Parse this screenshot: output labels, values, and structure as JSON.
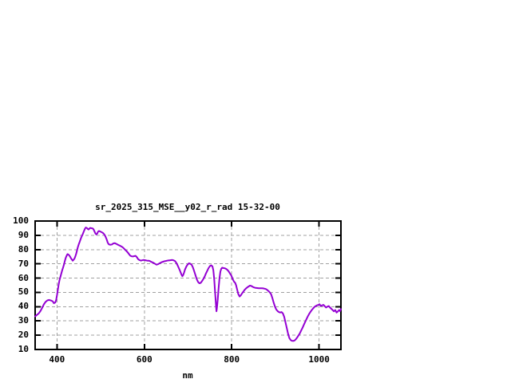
{
  "window": {
    "background": "#ffffff"
  },
  "chart_data": {
    "type": "line",
    "title": "sr_2025_315_MSE__y02_r_rad 15-32-00",
    "xlabel": "nm",
    "ylabel": "",
    "xlim": [
      350,
      1050
    ],
    "ylim": [
      10,
      100
    ],
    "x_ticks": [
      400,
      600,
      800,
      1000
    ],
    "y_ticks": [
      10,
      20,
      30,
      40,
      50,
      60,
      70,
      80,
      90,
      100
    ],
    "grid": true,
    "legend": "none",
    "colors": {
      "line": "#9400d3",
      "grid": "#a0a0a0",
      "border": "#000000",
      "text": "#000000"
    },
    "points": [
      [
        350,
        33.2
      ],
      [
        354,
        34.2
      ],
      [
        358,
        35.2
      ],
      [
        362,
        36.9
      ],
      [
        366,
        39.2
      ],
      [
        370,
        41.6
      ],
      [
        374,
        43.4
      ],
      [
        378,
        44.4
      ],
      [
        382,
        44.7
      ],
      [
        386,
        44.3
      ],
      [
        390,
        43.8
      ],
      [
        393,
        42.4
      ],
      [
        396,
        42.9
      ],
      [
        398,
        44.6
      ],
      [
        400,
        48.0
      ],
      [
        402,
        52.0
      ],
      [
        404,
        55.6
      ],
      [
        406,
        58.8
      ],
      [
        408,
        61.0
      ],
      [
        410,
        63.3
      ],
      [
        412,
        65.5
      ],
      [
        414,
        67.4
      ],
      [
        416,
        69.4
      ],
      [
        418,
        72.0
      ],
      [
        420,
        74.1
      ],
      [
        422,
        75.6
      ],
      [
        424,
        76.8
      ],
      [
        426,
        76.6
      ],
      [
        428,
        75.9
      ],
      [
        430,
        75.0
      ],
      [
        432,
        73.9
      ],
      [
        434,
        73.0
      ],
      [
        436,
        72.2
      ],
      [
        438,
        72.8
      ],
      [
        440,
        73.6
      ],
      [
        442,
        75.1
      ],
      [
        444,
        77.0
      ],
      [
        446,
        79.5
      ],
      [
        448,
        81.9
      ],
      [
        450,
        83.8
      ],
      [
        452,
        85.4
      ],
      [
        454,
        87.2
      ],
      [
        456,
        88.8
      ],
      [
        458,
        90.1
      ],
      [
        460,
        91.6
      ],
      [
        462,
        93.1
      ],
      [
        464,
        94.6
      ],
      [
        466,
        95.5
      ],
      [
        468,
        95.2
      ],
      [
        470,
        94.6
      ],
      [
        472,
        94.1
      ],
      [
        474,
        94.6
      ],
      [
        476,
        95.2
      ],
      [
        478,
        95.0
      ],
      [
        480,
        94.9
      ],
      [
        482,
        94.8
      ],
      [
        484,
        94.0
      ],
      [
        486,
        92.6
      ],
      [
        488,
        91.3
      ],
      [
        490,
        90.6
      ],
      [
        492,
        91.1
      ],
      [
        494,
        92.5
      ],
      [
        496,
        93.0
      ],
      [
        498,
        92.8
      ],
      [
        500,
        92.5
      ],
      [
        502,
        92.2
      ],
      [
        504,
        91.9
      ],
      [
        506,
        91.4
      ],
      [
        508,
        90.8
      ],
      [
        510,
        89.8
      ],
      [
        512,
        88.5
      ],
      [
        514,
        87.0
      ],
      [
        516,
        85.1
      ],
      [
        518,
        83.9
      ],
      [
        520,
        83.5
      ],
      [
        523,
        83.4
      ],
      [
        526,
        83.6
      ],
      [
        529,
        84.3
      ],
      [
        532,
        84.5
      ],
      [
        535,
        84.1
      ],
      [
        538,
        83.6
      ],
      [
        541,
        83.2
      ],
      [
        544,
        82.7
      ],
      [
        547,
        82.2
      ],
      [
        550,
        81.7
      ],
      [
        553,
        80.8
      ],
      [
        556,
        79.9
      ],
      [
        559,
        79.0
      ],
      [
        562,
        78.0
      ],
      [
        565,
        76.8
      ],
      [
        568,
        75.6
      ],
      [
        571,
        75.3
      ],
      [
        574,
        75.2
      ],
      [
        577,
        75.4
      ],
      [
        580,
        75.6
      ],
      [
        583,
        74.6
      ],
      [
        586,
        73.2
      ],
      [
        589,
        72.6
      ],
      [
        592,
        72.3
      ],
      [
        595,
        72.5
      ],
      [
        598,
        72.7
      ],
      [
        601,
        72.6
      ],
      [
        604,
        72.4
      ],
      [
        607,
        72.2
      ],
      [
        610,
        72.2
      ],
      [
        613,
        71.9
      ],
      [
        616,
        71.4
      ],
      [
        619,
        71.0
      ],
      [
        622,
        70.5
      ],
      [
        625,
        69.9
      ],
      [
        628,
        69.4
      ],
      [
        631,
        69.7
      ],
      [
        634,
        70.2
      ],
      [
        637,
        70.7
      ],
      [
        640,
        71.2
      ],
      [
        643,
        71.5
      ],
      [
        646,
        71.8
      ],
      [
        649,
        72.0
      ],
      [
        652,
        72.2
      ],
      [
        655,
        72.4
      ],
      [
        658,
        72.5
      ],
      [
        661,
        72.6
      ],
      [
        664,
        72.7
      ],
      [
        667,
        72.5
      ],
      [
        670,
        72.0
      ],
      [
        673,
        70.8
      ],
      [
        676,
        69.0
      ],
      [
        679,
        67.0
      ],
      [
        682,
        64.8
      ],
      [
        685,
        62.5
      ],
      [
        687,
        61.3
      ],
      [
        689,
        62.2
      ],
      [
        691,
        64.0
      ],
      [
        693,
        66.0
      ],
      [
        696,
        68.0
      ],
      [
        699,
        69.5
      ],
      [
        702,
        70.4
      ],
      [
        705,
        70.1
      ],
      [
        708,
        69.4
      ],
      [
        711,
        67.7
      ],
      [
        714,
        64.9
      ],
      [
        717,
        62.1
      ],
      [
        720,
        59.3
      ],
      [
        723,
        57.3
      ],
      [
        726,
        56.4
      ],
      [
        729,
        56.7
      ],
      [
        732,
        57.9
      ],
      [
        735,
        59.4
      ],
      [
        738,
        61.1
      ],
      [
        741,
        63.2
      ],
      [
        744,
        65.2
      ],
      [
        747,
        67.0
      ],
      [
        750,
        68.4
      ],
      [
        753,
        69.0
      ],
      [
        756,
        68.2
      ],
      [
        758,
        65.5
      ],
      [
        760,
        59.2
      ],
      [
        762,
        50.0
      ],
      [
        764,
        41.0
      ],
      [
        765,
        36.8
      ],
      [
        766,
        38.6
      ],
      [
        768,
        45.0
      ],
      [
        770,
        53.0
      ],
      [
        772,
        60.0
      ],
      [
        774,
        64.5
      ],
      [
        776,
        66.5
      ],
      [
        778,
        67.3
      ],
      [
        781,
        67.1
      ],
      [
        784,
        66.9
      ],
      [
        787,
        66.5
      ],
      [
        790,
        65.8
      ],
      [
        793,
        64.7
      ],
      [
        796,
        63.3
      ],
      [
        799,
        61.8
      ],
      [
        802,
        59.5
      ],
      [
        805,
        57.6
      ],
      [
        808,
        56.6
      ],
      [
        810,
        55.0
      ],
      [
        812,
        52.5
      ],
      [
        815,
        48.9
      ],
      [
        818,
        47.1
      ],
      [
        821,
        48.0
      ],
      [
        824,
        49.4
      ],
      [
        827,
        50.7
      ],
      [
        830,
        51.9
      ],
      [
        833,
        52.9
      ],
      [
        836,
        53.6
      ],
      [
        839,
        54.2
      ],
      [
        842,
        54.8
      ],
      [
        845,
        54.5
      ],
      [
        848,
        53.9
      ],
      [
        851,
        53.5
      ],
      [
        854,
        53.2
      ],
      [
        857,
        53.1
      ],
      [
        860,
        53.0
      ],
      [
        863,
        52.9
      ],
      [
        866,
        52.9
      ],
      [
        869,
        52.9
      ],
      [
        872,
        52.8
      ],
      [
        875,
        52.6
      ],
      [
        878,
        52.4
      ],
      [
        881,
        51.8
      ],
      [
        884,
        51.0
      ],
      [
        887,
        50.1
      ],
      [
        890,
        48.8
      ],
      [
        893,
        46.1
      ],
      [
        896,
        42.9
      ],
      [
        899,
        40.0
      ],
      [
        902,
        38.0
      ],
      [
        905,
        36.9
      ],
      [
        908,
        36.2
      ],
      [
        911,
        35.9
      ],
      [
        914,
        36.2
      ],
      [
        917,
        35.4
      ],
      [
        920,
        33.0
      ],
      [
        923,
        29.1
      ],
      [
        926,
        25.0
      ],
      [
        929,
        21.0
      ],
      [
        932,
        18.0
      ],
      [
        935,
        16.6
      ],
      [
        938,
        16.1
      ],
      [
        941,
        16.0
      ],
      [
        944,
        16.3
      ],
      [
        947,
        17.2
      ],
      [
        950,
        18.5
      ],
      [
        953,
        19.9
      ],
      [
        956,
        21.4
      ],
      [
        959,
        23.3
      ],
      [
        962,
        25.2
      ],
      [
        965,
        27.2
      ],
      [
        968,
        29.2
      ],
      [
        971,
        31.2
      ],
      [
        974,
        33.1
      ],
      [
        977,
        34.8
      ],
      [
        980,
        36.2
      ],
      [
        983,
        37.5
      ],
      [
        986,
        38.7
      ],
      [
        989,
        39.7
      ],
      [
        992,
        40.4
      ],
      [
        995,
        40.9
      ],
      [
        998,
        41.2
      ],
      [
        1001,
        41.7
      ],
      [
        1004,
        40.5
      ],
      [
        1007,
        40.9
      ],
      [
        1010,
        41.3
      ],
      [
        1013,
        40.3
      ],
      [
        1016,
        39.4
      ],
      [
        1019,
        40.0
      ],
      [
        1022,
        40.4
      ],
      [
        1025,
        39.4
      ],
      [
        1028,
        38.5
      ],
      [
        1031,
        37.6
      ],
      [
        1034,
        36.7
      ],
      [
        1037,
        37.6
      ],
      [
        1040,
        35.9
      ],
      [
        1043,
        36.7
      ],
      [
        1046,
        37.6
      ],
      [
        1048,
        36.9
      ],
      [
        1050,
        38.3
      ]
    ]
  }
}
